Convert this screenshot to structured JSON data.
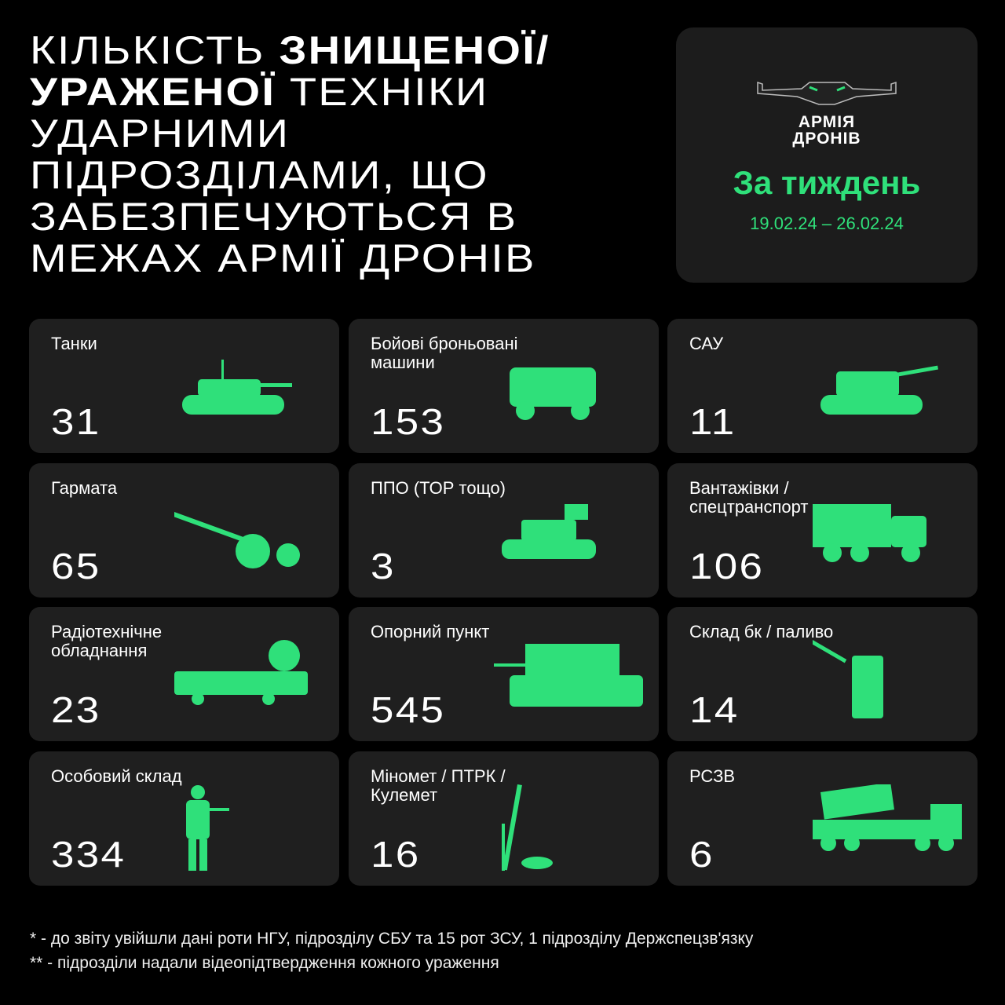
{
  "title": {
    "l1a": "Кількість ",
    "l1b": "знищеної/",
    "l2a": "ураженої",
    "l2b": " техніки",
    "l3": "ударними",
    "l4": "підрозділами, що",
    "l5": "забезпечуються в",
    "l6": "межах армії дронів"
  },
  "badge": {
    "logo_l1": "АРМІЯ",
    "logo_l2": "ДРОНІВ",
    "period": "За тиждень",
    "dates": "19.02.24 – 26.02.24"
  },
  "accent": "#2fe07a",
  "cards": [
    {
      "label": "Танки",
      "value": "31",
      "icon": "tank-icon"
    },
    {
      "label": "Бойові броньовані машини",
      "value": "153",
      "icon": "armored-vehicle-icon"
    },
    {
      "label": "САУ",
      "value": "11",
      "icon": "self-propelled-gun-icon"
    },
    {
      "label": "Гармата",
      "value": "65",
      "icon": "howitzer-icon"
    },
    {
      "label": "ППО (ТОР тощо)",
      "value": "3",
      "icon": "air-defense-icon"
    },
    {
      "label": "Вантажівки / спецтранспорт",
      "value": "106",
      "icon": "truck-icon"
    },
    {
      "label": "Радіотехнічне обладнання",
      "value": "23",
      "icon": "radar-icon"
    },
    {
      "label": "Опорний пункт",
      "value": "545",
      "icon": "bunker-icon"
    },
    {
      "label": "Склад бк / паливо",
      "value": "14",
      "icon": "fuel-can-icon"
    },
    {
      "label": "Особовий склад",
      "value": "334",
      "icon": "soldier-icon"
    },
    {
      "label": "Міномет / ПТРК /Кулемет",
      "value": "16",
      "icon": "mortar-icon"
    },
    {
      "label": "РСЗВ",
      "value": "6",
      "icon": "rocket-launcher-icon"
    }
  ],
  "footnotes": [
    "* - до звіту увійшли дані роти НГУ, підрозділу СБУ та 15 рот ЗСУ, 1 підрозділу Держспецзв'язку",
    "** - підрозділи надали відеопідтвердження кожного ураження"
  ]
}
